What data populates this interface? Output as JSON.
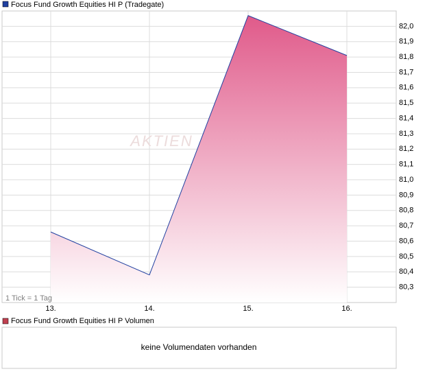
{
  "chart_data": {
    "type": "line",
    "title": "Focus Fund Growth Equities HI P (Tradegate)",
    "watermark": "AKTIEN",
    "annotation": "1 Tick = 1 Tag",
    "categories": [
      "13.",
      "14.",
      "15.",
      "16."
    ],
    "series": [
      {
        "name": "Focus Fund Growth Equities HI P (Tradegate)",
        "color": "#2040a0",
        "fill": "#e05a8a",
        "values": [
          80.66,
          80.38,
          82.07,
          81.81
        ]
      }
    ],
    "ylim": [
      80.2,
      82.1
    ],
    "yticks": [
      {
        "value": 82.0,
        "label": "82,0"
      },
      {
        "value": 81.9,
        "label": "81,9"
      },
      {
        "value": 81.8,
        "label": "81,8"
      },
      {
        "value": 81.7,
        "label": "81,7"
      },
      {
        "value": 81.6,
        "label": "81,6"
      },
      {
        "value": 81.5,
        "label": "81,5"
      },
      {
        "value": 81.4,
        "label": "81,4"
      },
      {
        "value": 81.3,
        "label": "81,3"
      },
      {
        "value": 81.2,
        "label": "81,2"
      },
      {
        "value": 81.1,
        "label": "81,1"
      },
      {
        "value": 81.0,
        "label": "81,0"
      },
      {
        "value": 80.9,
        "label": "80,9"
      },
      {
        "value": 80.8,
        "label": "80,8"
      },
      {
        "value": 80.7,
        "label": "80,7"
      },
      {
        "value": 80.6,
        "label": "80,6"
      },
      {
        "value": 80.5,
        "label": "80,5"
      },
      {
        "value": 80.4,
        "label": "80,4"
      },
      {
        "value": 80.3,
        "label": "80,3"
      }
    ],
    "grid": true,
    "volume": {
      "title": "Focus Fund Growth Equities HI P Volumen",
      "color": "#c04050",
      "message": "keine Volumendaten vorhanden"
    }
  }
}
